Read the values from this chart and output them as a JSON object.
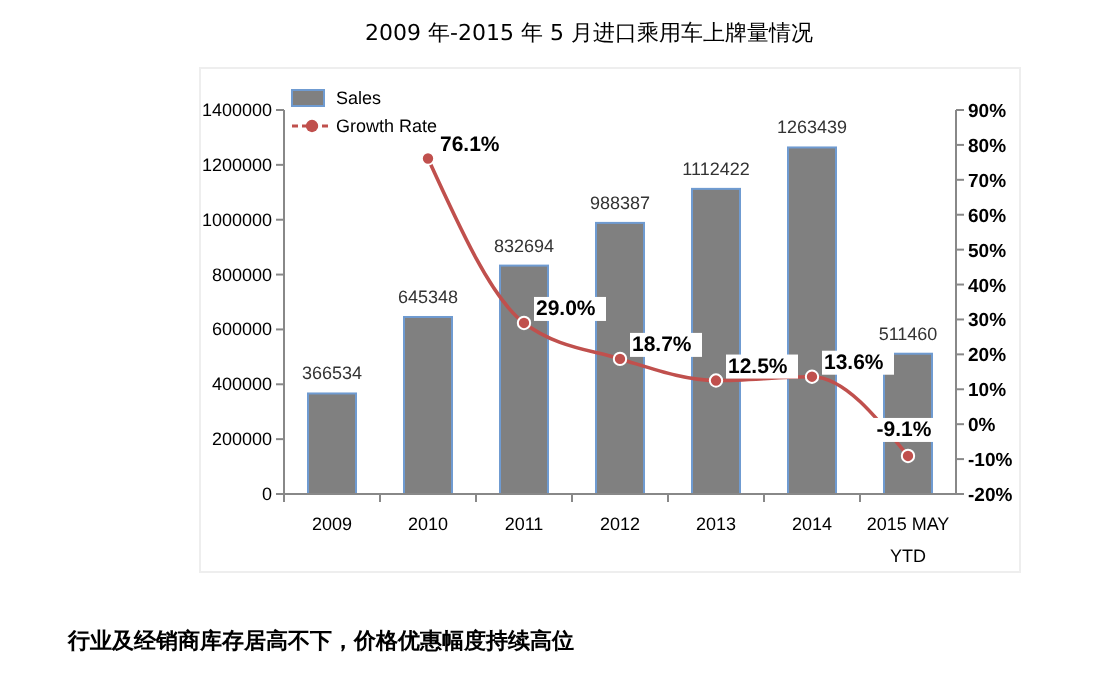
{
  "chart_data": {
    "type": "bar",
    "title": "2009 年-2015 年 5 月进口乘用车上牌量情况",
    "categories": [
      "2009",
      "2010",
      "2011",
      "2012",
      "2013",
      "2014",
      "2015 MAY YTD"
    ],
    "series": [
      {
        "name": "Sales",
        "color": "#808080",
        "values": [
          366534,
          645348,
          832694,
          988387,
          1112422,
          1263439,
          511460
        ],
        "value_labels": [
          "366534",
          "645348",
          "832694",
          "988387",
          "1112422",
          "1263439",
          "511460"
        ]
      },
      {
        "name": "Growth Rate",
        "type": "line",
        "axis": "y2",
        "color": "#c0504d",
        "marker": "circle",
        "values": [
          null,
          76.1,
          29.0,
          18.7,
          12.5,
          13.6,
          -9.1
        ],
        "value_labels": [
          null,
          "76.1%",
          "29.0%",
          "18.7%",
          "12.5%",
          "13.6%",
          "-9.1%"
        ]
      }
    ],
    "ylim": [
      0,
      1400000
    ],
    "yticks": [
      0,
      200000,
      400000,
      600000,
      800000,
      1000000,
      1200000,
      1400000
    ],
    "y2lim": [
      -20,
      90
    ],
    "y2ticks": [
      {
        "value": -20,
        "label": "-20%"
      },
      {
        "value": -10,
        "label": "-10%"
      },
      {
        "value": 0,
        "label": "0%"
      },
      {
        "value": 10,
        "label": "10%"
      },
      {
        "value": 20,
        "label": "20%"
      },
      {
        "value": 30,
        "label": "30%"
      },
      {
        "value": 40,
        "label": "40%"
      },
      {
        "value": 50,
        "label": "50%"
      },
      {
        "value": 60,
        "label": "60%"
      },
      {
        "value": 70,
        "label": "70%"
      },
      {
        "value": 80,
        "label": "80%"
      },
      {
        "value": 90,
        "label": "90%"
      }
    ],
    "legend": "top left",
    "grid": false,
    "annotations": [
      "行业及经销商库存居高不下，价格优惠幅度持续高位"
    ]
  }
}
